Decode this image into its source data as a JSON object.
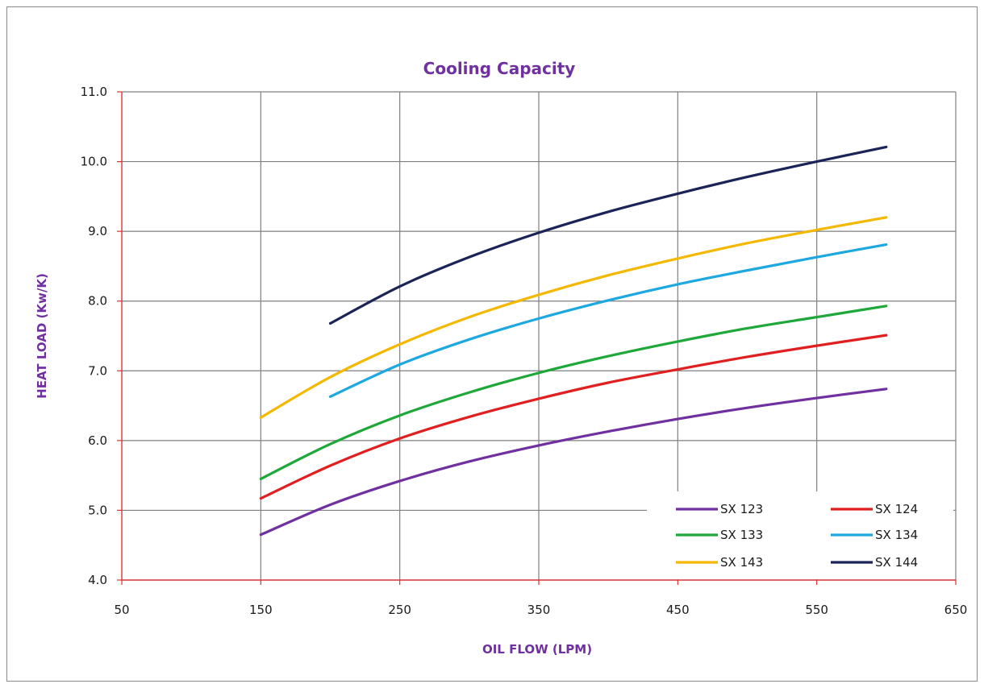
{
  "chart_data": {
    "type": "line",
    "title": "Cooling Capacity",
    "xlabel": "OIL FLOW (LPM)",
    "ylabel": "HEAT  LOAD (Kw/K)",
    "xlim": [
      50,
      650
    ],
    "ylim": [
      4.0,
      11.0
    ],
    "x_ticks": [
      "50",
      "150",
      "250",
      "350",
      "450",
      "550",
      "650"
    ],
    "y_ticks": [
      "4.0",
      "5.0",
      "6.0",
      "7.0",
      "8.0",
      "9.0",
      "10.0",
      "11.0"
    ],
    "grid": true,
    "legend_position": "bottom-right",
    "colors": {
      "title": "#7030a0",
      "axis_titles": "#7030a0",
      "axis_lines": "#e03030",
      "grid": "#7f7f7f"
    },
    "series": [
      {
        "name": "SX 123",
        "color": "#7030a0",
        "x": [
          150,
          200,
          250,
          300,
          350,
          400,
          450,
          500,
          550,
          600
        ],
        "y": [
          4.65,
          5.08,
          5.42,
          5.7,
          5.93,
          6.13,
          6.31,
          6.47,
          6.61,
          6.74
        ]
      },
      {
        "name": "SX 124",
        "color": "#e02020",
        "x": [
          150,
          200,
          250,
          300,
          350,
          400,
          450,
          500,
          550,
          600
        ],
        "y": [
          5.17,
          5.64,
          6.03,
          6.34,
          6.6,
          6.83,
          7.02,
          7.2,
          7.36,
          7.51
        ]
      },
      {
        "name": "SX 133",
        "color": "#1fa83a",
        "x": [
          150,
          200,
          250,
          300,
          350,
          400,
          450,
          500,
          550,
          600
        ],
        "y": [
          5.45,
          5.95,
          6.36,
          6.69,
          6.97,
          7.21,
          7.42,
          7.61,
          7.77,
          7.93
        ]
      },
      {
        "name": "SX 134",
        "color": "#1ea8e0",
        "x": [
          200,
          250,
          300,
          350,
          400,
          450,
          500,
          550,
          600
        ],
        "y": [
          6.63,
          7.09,
          7.45,
          7.75,
          8.01,
          8.24,
          8.44,
          8.63,
          8.81
        ]
      },
      {
        "name": "SX 143",
        "color": "#f5b800",
        "x": [
          150,
          200,
          250,
          300,
          350,
          400,
          450,
          500,
          550,
          600
        ],
        "y": [
          6.33,
          6.91,
          7.38,
          7.77,
          8.09,
          8.37,
          8.61,
          8.83,
          9.02,
          9.2
        ]
      },
      {
        "name": "SX 144",
        "color": "#1a2456",
        "x": [
          200,
          250,
          300,
          350,
          400,
          450,
          500,
          550,
          600
        ],
        "y": [
          7.68,
          8.21,
          8.63,
          8.98,
          9.28,
          9.54,
          9.78,
          10.0,
          10.21
        ]
      }
    ]
  }
}
